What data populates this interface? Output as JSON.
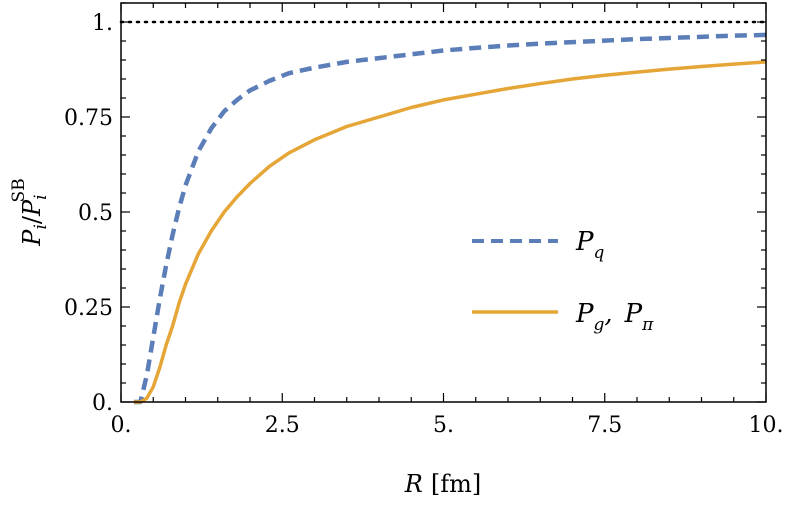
{
  "chart_data": {
    "type": "line",
    "xlabel_var": "R",
    "xlabel_unit": "[fm]",
    "ylabel_main": "P",
    "ylabel_sub": "i",
    "ylabel_slash": "/",
    "ylabel_den": "P",
    "ylabel_den_sup": "SB",
    "ylabel_den_sub": "i",
    "xlim": [
      0,
      10
    ],
    "ylim": [
      0,
      1.05
    ],
    "x_ticks": [
      0,
      2.5,
      5,
      7.5,
      10
    ],
    "x_tick_labels": [
      "0.",
      "2.5",
      "5.",
      "7.5",
      "10."
    ],
    "y_ticks": [
      0,
      0.25,
      0.5,
      0.75,
      1
    ],
    "y_tick_labels": [
      "0.",
      "0.25",
      "0.5",
      "0.75",
      "1."
    ],
    "reference_line": {
      "y": 1.0,
      "style": "dotted",
      "color": "#000000"
    },
    "legend_position": "center-right",
    "series": [
      {
        "name": "P_q",
        "legend_main": "P",
        "legend_sub": "q",
        "color": "#5B7DB8",
        "style": "dashed",
        "x": [
          0.2,
          0.3,
          0.4,
          0.5,
          0.6,
          0.7,
          0.8,
          0.9,
          1.0,
          1.2,
          1.4,
          1.6,
          1.8,
          2.0,
          2.3,
          2.6,
          3.0,
          3.5,
          4.0,
          4.5,
          5.0,
          5.5,
          6.0,
          6.5,
          7.0,
          7.5,
          8.0,
          8.5,
          9.0,
          9.5,
          10.0
        ],
        "y": [
          0.0,
          0.0,
          0.07,
          0.17,
          0.27,
          0.36,
          0.44,
          0.51,
          0.57,
          0.66,
          0.72,
          0.765,
          0.795,
          0.82,
          0.845,
          0.865,
          0.88,
          0.895,
          0.905,
          0.915,
          0.925,
          0.932,
          0.938,
          0.943,
          0.947,
          0.951,
          0.955,
          0.958,
          0.961,
          0.964,
          0.966
        ]
      },
      {
        "name": "P_g, P_pi",
        "legend_main_1": "P",
        "legend_sub_1": "g",
        "legend_sep": ",",
        "legend_main_2": "P",
        "legend_sub_2": "π",
        "color": "#E6A537",
        "style": "solid",
        "x": [
          0.2,
          0.3,
          0.4,
          0.5,
          0.6,
          0.7,
          0.8,
          0.9,
          1.0,
          1.2,
          1.4,
          1.6,
          1.8,
          2.0,
          2.3,
          2.6,
          3.0,
          3.5,
          4.0,
          4.5,
          5.0,
          5.5,
          6.0,
          6.5,
          7.0,
          7.5,
          8.0,
          8.5,
          9.0,
          9.5,
          10.0
        ],
        "y": [
          0.0,
          0.0,
          0.01,
          0.04,
          0.09,
          0.15,
          0.2,
          0.26,
          0.31,
          0.39,
          0.45,
          0.5,
          0.54,
          0.575,
          0.62,
          0.655,
          0.69,
          0.725,
          0.75,
          0.775,
          0.795,
          0.81,
          0.825,
          0.838,
          0.85,
          0.86,
          0.868,
          0.876,
          0.883,
          0.889,
          0.895
        ]
      }
    ]
  }
}
